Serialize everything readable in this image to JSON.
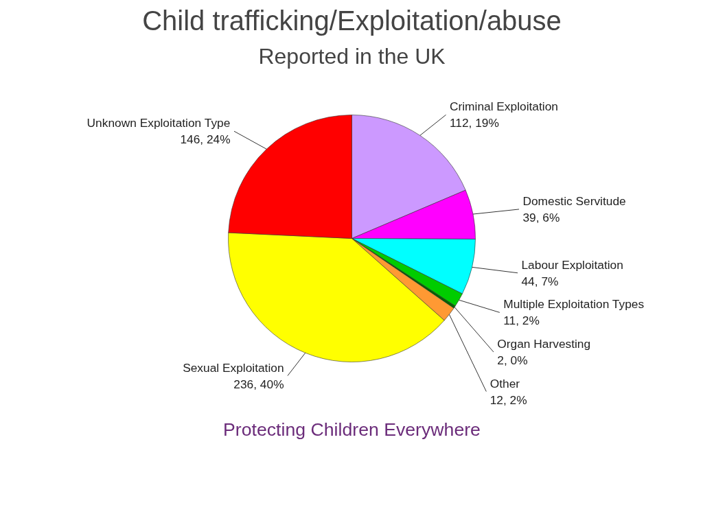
{
  "chart_data": {
    "type": "pie",
    "title": "Child trafficking/Exploitation/abuse",
    "subtitle": "Reported in the UK",
    "categories": [
      "Criminal Exploitation",
      "Domestic Servitude",
      "Labour Exploitation",
      "Multiple Exploitation Types",
      "Organ Harvesting",
      "Other",
      "Sexual Exploitation",
      "Unknown Exploitation Type"
    ],
    "values": [
      112,
      39,
      44,
      11,
      2,
      12,
      236,
      146
    ],
    "colors": [
      "#cc99ff",
      "#ff00ff",
      "#00ffff",
      "#00cc00",
      "#006600",
      "#ff9933",
      "#ffff00",
      "#ff0000"
    ],
    "value_labels": [
      "112, 19%",
      "39, 6%",
      "44, 7%",
      "11, 2%",
      "2, 0%",
      "12, 2%",
      "236, 40%",
      "146, 24%"
    ],
    "annotations": [
      "Protecting Children Everywhere"
    ]
  }
}
